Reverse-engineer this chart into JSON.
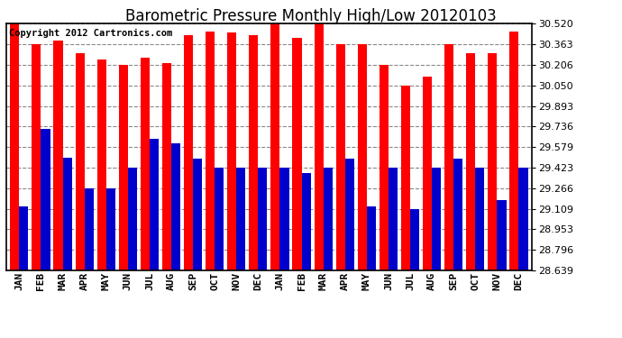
{
  "title": "Barometric Pressure Monthly High/Low 20120103",
  "copyright": "Copyright 2012 Cartronics.com",
  "months": [
    "JAN",
    "FEB",
    "MAR",
    "APR",
    "MAY",
    "JUN",
    "JUL",
    "AUG",
    "SEP",
    "OCT",
    "NOV",
    "DEC",
    "JAN",
    "FEB",
    "MAR",
    "APR",
    "MAY",
    "JUN",
    "JUL",
    "AUG",
    "SEP",
    "OCT",
    "NOV",
    "DEC"
  ],
  "highs": [
    30.52,
    30.363,
    30.39,
    30.295,
    30.25,
    30.206,
    30.26,
    30.22,
    30.43,
    30.46,
    30.45,
    30.43,
    30.54,
    30.41,
    30.54,
    30.363,
    30.363,
    30.206,
    30.05,
    30.113,
    30.363,
    30.295,
    30.295,
    30.46
  ],
  "lows": [
    29.13,
    29.72,
    29.5,
    29.266,
    29.266,
    29.423,
    29.64,
    29.61,
    29.49,
    29.423,
    29.423,
    29.423,
    29.423,
    29.38,
    29.423,
    29.49,
    29.13,
    29.423,
    29.109,
    29.423,
    29.49,
    29.423,
    29.175,
    29.423
  ],
  "high_color": "#ff0000",
  "low_color": "#0000cc",
  "bg_color": "#ffffff",
  "grid_color": "#888888",
  "yticks": [
    28.639,
    28.796,
    28.953,
    29.109,
    29.266,
    29.423,
    29.579,
    29.736,
    29.893,
    30.05,
    30.206,
    30.363,
    30.52
  ],
  "ymin": 28.639,
  "ymax": 30.52,
  "title_fontsize": 12,
  "tick_fontsize": 8,
  "copyright_fontsize": 7.5
}
